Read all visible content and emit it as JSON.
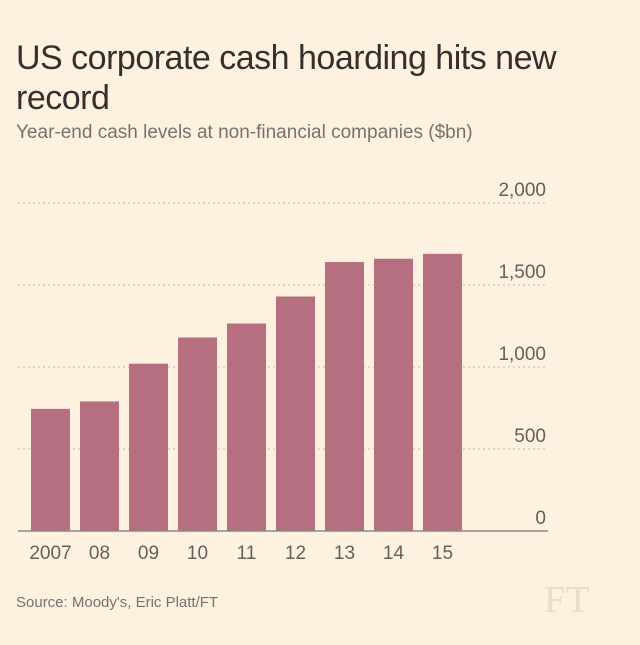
{
  "chart_data": {
    "type": "bar",
    "title": "US corporate cash hoarding hits new record",
    "subtitle": "Year-end cash levels at non-financial companies ($bn)",
    "categories": [
      "2007",
      "08",
      "09",
      "10",
      "11",
      "12",
      "13",
      "14",
      "15"
    ],
    "values": [
      745,
      790,
      1020,
      1180,
      1265,
      1430,
      1640,
      1660,
      1690
    ],
    "ylim": [
      0,
      2000
    ],
    "yticks": [
      0,
      500,
      1000,
      1500,
      2000
    ],
    "ytick_labels": [
      "0",
      "500",
      "1,000",
      "1,500",
      "2,000"
    ],
    "xlabel": "",
    "ylabel": "",
    "grid": true,
    "bar_color": "#b56f81"
  },
  "source": "Source: Moody's, Eric Platt/FT",
  "logo": "FT"
}
